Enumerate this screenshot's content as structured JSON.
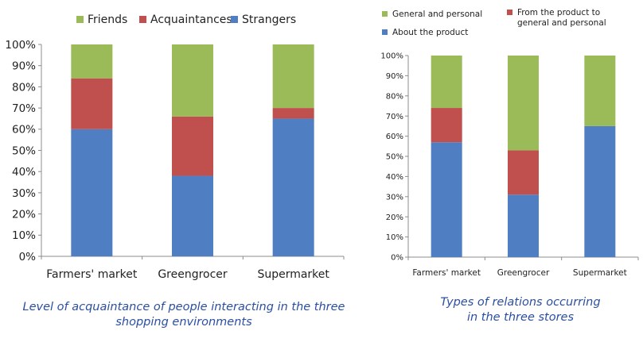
{
  "chart_data": [
    {
      "type": "bar",
      "stacked": true,
      "categories": [
        "Farmers' market",
        "Greengrocer",
        "Supermarket"
      ],
      "series": [
        {
          "name": "Strangers",
          "values": [
            60,
            38,
            65
          ],
          "color": "#4f7ec2"
        },
        {
          "name": "Acquaintances",
          "values": [
            24,
            28,
            5
          ],
          "color": "#c0504d"
        },
        {
          "name": "Friends",
          "values": [
            16,
            34,
            30
          ],
          "color": "#9bbb59"
        }
      ],
      "legend_order": [
        "Friends",
        "Acquaintances",
        "Strangers"
      ],
      "legend_position": "top",
      "ylim": [
        0,
        100
      ],
      "yticks": [
        "0%",
        "10%",
        "20%",
        "30%",
        "40%",
        "50%",
        "60%",
        "70%",
        "80%",
        "90%",
        "100%"
      ],
      "grid": false,
      "caption_lines": [
        "Level of acquaintance of people interacting in the three",
        "shopping environments"
      ]
    },
    {
      "type": "bar",
      "stacked": true,
      "categories": [
        "Farmers' market",
        "Greengrocer",
        "Supermarket"
      ],
      "series": [
        {
          "name": "About the product",
          "values": [
            57,
            31,
            65
          ],
          "color": "#4f7ec2"
        },
        {
          "name": "From the product to general and personal",
          "values": [
            17,
            22,
            0
          ],
          "color": "#c0504d"
        },
        {
          "name": "General and personal",
          "values": [
            26,
            47,
            35
          ],
          "color": "#9bbb59"
        }
      ],
      "legend_items": [
        {
          "lines": [
            "General and personal"
          ],
          "series": "General and personal"
        },
        {
          "lines": [
            "From the product to",
            "general and personal"
          ],
          "series": "From the product to general and personal"
        },
        {
          "lines": [
            "About the product"
          ],
          "series": "About the product"
        }
      ],
      "legend_position": "top",
      "ylim": [
        0,
        100
      ],
      "yticks": [
        "0%",
        "10%",
        "20%",
        "30%",
        "40%",
        "50%",
        "60%",
        "70%",
        "80%",
        "90%",
        "100%"
      ],
      "grid": false,
      "caption_lines": [
        "Types of relations occurring",
        "in the three stores"
      ]
    }
  ]
}
